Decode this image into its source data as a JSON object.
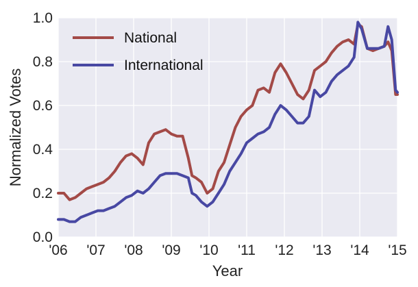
{
  "chart_data": {
    "type": "line",
    "xlabel": "Year",
    "ylabel": "Normalized Votes",
    "xlim": [
      2006,
      2015
    ],
    "ylim": [
      0.0,
      1.0
    ],
    "grid": true,
    "legend_position": "top-left",
    "x_ticks": [
      {
        "value": 2006,
        "label": "'06"
      },
      {
        "value": 2007,
        "label": "'07"
      },
      {
        "value": 2008,
        "label": "'08"
      },
      {
        "value": 2009,
        "label": "'09"
      },
      {
        "value": 2010,
        "label": "'10"
      },
      {
        "value": 2011,
        "label": "'11"
      },
      {
        "value": 2012,
        "label": "'12"
      },
      {
        "value": 2013,
        "label": "'13"
      },
      {
        "value": 2014,
        "label": "'14"
      },
      {
        "value": 2015,
        "label": "'15"
      }
    ],
    "y_ticks": [
      {
        "value": 0.0,
        "label": "0.0"
      },
      {
        "value": 0.2,
        "label": "0.2"
      },
      {
        "value": 0.4,
        "label": "0.4"
      },
      {
        "value": 0.6,
        "label": "0.6"
      },
      {
        "value": 0.8,
        "label": "0.8"
      },
      {
        "value": 1.0,
        "label": "1.0"
      }
    ],
    "colors": {
      "plot_bg": "#eaeaf2",
      "grid": "#ffffff",
      "national": "#a34a47",
      "international": "#4848a3"
    },
    "series": [
      {
        "name": "National",
        "color": "#a34a47",
        "x": [
          2006.0,
          2006.15,
          2006.3,
          2006.45,
          2006.6,
          2006.75,
          2006.9,
          2007.05,
          2007.2,
          2007.35,
          2007.5,
          2007.65,
          2007.8,
          2007.95,
          2008.1,
          2008.25,
          2008.4,
          2008.55,
          2008.7,
          2008.85,
          2009.0,
          2009.15,
          2009.3,
          2009.45,
          2009.55,
          2009.65,
          2009.8,
          2009.95,
          2010.1,
          2010.25,
          2010.4,
          2010.55,
          2010.7,
          2010.85,
          2011.0,
          2011.15,
          2011.3,
          2011.45,
          2011.6,
          2011.75,
          2011.9,
          2012.05,
          2012.2,
          2012.35,
          2012.5,
          2012.65,
          2012.8,
          2012.95,
          2013.1,
          2013.25,
          2013.4,
          2013.55,
          2013.7,
          2013.85,
          2013.95,
          2014.05,
          2014.2,
          2014.35,
          2014.5,
          2014.65,
          2014.75,
          2014.85,
          2014.95,
          2015.0
        ],
        "y": [
          0.2,
          0.2,
          0.17,
          0.18,
          0.2,
          0.22,
          0.23,
          0.24,
          0.25,
          0.27,
          0.3,
          0.34,
          0.37,
          0.38,
          0.36,
          0.33,
          0.43,
          0.47,
          0.48,
          0.49,
          0.47,
          0.46,
          0.46,
          0.36,
          0.28,
          0.27,
          0.25,
          0.2,
          0.22,
          0.3,
          0.34,
          0.42,
          0.5,
          0.55,
          0.58,
          0.6,
          0.67,
          0.68,
          0.66,
          0.75,
          0.79,
          0.75,
          0.7,
          0.65,
          0.63,
          0.67,
          0.76,
          0.78,
          0.8,
          0.84,
          0.87,
          0.89,
          0.9,
          0.88,
          0.97,
          0.96,
          0.86,
          0.85,
          0.86,
          0.87,
          0.89,
          0.85,
          0.65,
          0.65
        ]
      },
      {
        "name": "International",
        "color": "#4848a3",
        "x": [
          2006.0,
          2006.15,
          2006.3,
          2006.45,
          2006.6,
          2006.75,
          2006.9,
          2007.05,
          2007.2,
          2007.35,
          2007.5,
          2007.65,
          2007.8,
          2007.95,
          2008.1,
          2008.25,
          2008.4,
          2008.55,
          2008.7,
          2008.85,
          2009.0,
          2009.15,
          2009.3,
          2009.45,
          2009.55,
          2009.65,
          2009.8,
          2009.95,
          2010.1,
          2010.25,
          2010.4,
          2010.55,
          2010.7,
          2010.85,
          2011.0,
          2011.15,
          2011.3,
          2011.45,
          2011.6,
          2011.75,
          2011.9,
          2012.05,
          2012.2,
          2012.35,
          2012.5,
          2012.65,
          2012.8,
          2012.95,
          2013.1,
          2013.25,
          2013.4,
          2013.55,
          2013.7,
          2013.85,
          2013.95,
          2014.05,
          2014.2,
          2014.35,
          2014.5,
          2014.65,
          2014.75,
          2014.85,
          2014.95,
          2015.0
        ],
        "y": [
          0.08,
          0.08,
          0.07,
          0.07,
          0.09,
          0.1,
          0.11,
          0.12,
          0.12,
          0.13,
          0.14,
          0.16,
          0.18,
          0.19,
          0.21,
          0.2,
          0.22,
          0.25,
          0.28,
          0.29,
          0.29,
          0.29,
          0.28,
          0.27,
          0.2,
          0.19,
          0.16,
          0.14,
          0.16,
          0.2,
          0.24,
          0.3,
          0.34,
          0.38,
          0.43,
          0.45,
          0.47,
          0.48,
          0.5,
          0.56,
          0.6,
          0.58,
          0.55,
          0.52,
          0.52,
          0.55,
          0.67,
          0.64,
          0.66,
          0.71,
          0.74,
          0.76,
          0.78,
          0.82,
          0.98,
          0.95,
          0.86,
          0.86,
          0.86,
          0.87,
          0.96,
          0.9,
          0.67,
          0.66
        ]
      }
    ]
  }
}
